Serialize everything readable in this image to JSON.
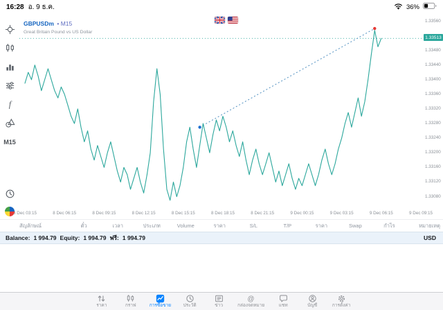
{
  "status_bar": {
    "time": "16:28",
    "date": "อ. 9 ธ.ค.",
    "battery_percent": "36%"
  },
  "chart_header": {
    "symbol": "GBPUSDm",
    "tf_text": "• M15",
    "description": "Great Britain Pound vs US Dollar"
  },
  "side_toolbar": {
    "timeframe_button": "M15",
    "icons": [
      "crosshair-icon",
      "candlestick-chart-icon",
      "bar-chart-icon",
      "tuning-sliders-icon",
      "indicators-f-icon",
      "objects-shapes-icon",
      "history-clock-icon",
      "brand-logo-icon"
    ]
  },
  "chart_data": {
    "type": "line",
    "symbol": "GBPUSDm",
    "timeframe": "M15",
    "line_color": "#2ba79c",
    "current_price": "1.33513",
    "ylim": [
      1.33045,
      1.3358
    ],
    "bars_per_tick": 12,
    "x_tick_labels": [
      "8 Dec 03:15",
      "8 Dec 06:15",
      "8 Dec 09:15",
      "8 Dec 12:15",
      "8 Dec 15:15",
      "8 Dec 18:15",
      "8 Dec 21:15",
      "9 Dec 00:15",
      "9 Dec 03:15",
      "9 Dec 06:15",
      "9 Dec 09:15",
      "9 Dec 12:15"
    ],
    "y_tick_labels": [
      "1.33560",
      "1.33480",
      "1.33440",
      "1.33400",
      "1.33360",
      "1.33320",
      "1.33280",
      "1.33240",
      "1.33200",
      "1.33160",
      "1.33120",
      "1.33080"
    ],
    "prices": [
      1.3339,
      1.3342,
      1.334,
      1.3344,
      1.3341,
      1.3337,
      1.334,
      1.3343,
      1.334,
      1.3337,
      1.3335,
      1.3338,
      1.3336,
      1.3333,
      1.333,
      1.3328,
      1.3332,
      1.3327,
      1.3323,
      1.3326,
      1.3321,
      1.3318,
      1.3322,
      1.3319,
      1.3316,
      1.332,
      1.3323,
      1.3319,
      1.3315,
      1.3312,
      1.3316,
      1.3314,
      1.331,
      1.3313,
      1.3316,
      1.3312,
      1.3309,
      1.3314,
      1.332,
      1.3334,
      1.3343,
      1.3336,
      1.3321,
      1.331,
      1.3307,
      1.3312,
      1.3308,
      1.3311,
      1.3316,
      1.3323,
      1.3327,
      1.3321,
      1.3316,
      1.3322,
      1.3328,
      1.3324,
      1.332,
      1.3325,
      1.3329,
      1.3326,
      1.333,
      1.3327,
      1.3323,
      1.3326,
      1.3322,
      1.3319,
      1.3323,
      1.3318,
      1.3314,
      1.3318,
      1.3321,
      1.3317,
      1.3314,
      1.3317,
      1.332,
      1.3316,
      1.3312,
      1.3315,
      1.3311,
      1.3314,
      1.3317,
      1.3313,
      1.331,
      1.3313,
      1.3311,
      1.3314,
      1.3317,
      1.3314,
      1.3311,
      1.3314,
      1.3318,
      1.3321,
      1.3317,
      1.3314,
      1.3317,
      1.3321,
      1.3324,
      1.3328,
      1.3331,
      1.3327,
      1.3331,
      1.3335,
      1.333,
      1.3334,
      1.334,
      1.3347,
      1.33535,
      1.3349,
      1.33513
    ],
    "trendline": {
      "start_index": 53,
      "start_price": 1.3327,
      "end_index": 106,
      "end_price": 1.3354,
      "color": "#4f8fc0",
      "start_dot_color": "#1d6fd1",
      "end_dot_color": "#e53935"
    }
  },
  "trade_panel": {
    "columns": [
      "สัญลักษณ์",
      "ตั๋ว",
      "เวลา",
      "ประเภท",
      "Volume",
      "ราคา",
      "S/L",
      "T/P",
      "ราคา",
      "Swap",
      "กำไร",
      "หมายเหตุ"
    ]
  },
  "account_bar": {
    "items": [
      {
        "label": "Balance:",
        "value": "1 994.79"
      },
      {
        "label": "Equity:",
        "value": "1 994.79"
      },
      {
        "label": "ฟรี:",
        "value": "1 994.79"
      }
    ],
    "currency": "USD"
  },
  "tab_bar": {
    "active_index": 2,
    "active_color": "#0a84ff",
    "tabs": [
      {
        "id": "quotes",
        "label": "ราคา",
        "icon": "quotes-arrows-icon"
      },
      {
        "id": "charts",
        "label": "กราฟ",
        "icon": "chart-candles-icon"
      },
      {
        "id": "trade",
        "label": "การซื้อขาย",
        "icon": "trade-icon"
      },
      {
        "id": "history",
        "label": "ประวัติ",
        "icon": "history-clock-icon"
      },
      {
        "id": "news",
        "label": "ข่าว",
        "icon": "news-icon"
      },
      {
        "id": "mailbox",
        "label": "กล่องจดหมาย",
        "icon": "mailbox-at-icon"
      },
      {
        "id": "chat",
        "label": "แชท",
        "icon": "chat-bubble-icon"
      },
      {
        "id": "accounts",
        "label": "บัญชี",
        "icon": "account-person-icon"
      },
      {
        "id": "settings",
        "label": "การตั้งค่า",
        "icon": "settings-gear-icon"
      }
    ]
  }
}
